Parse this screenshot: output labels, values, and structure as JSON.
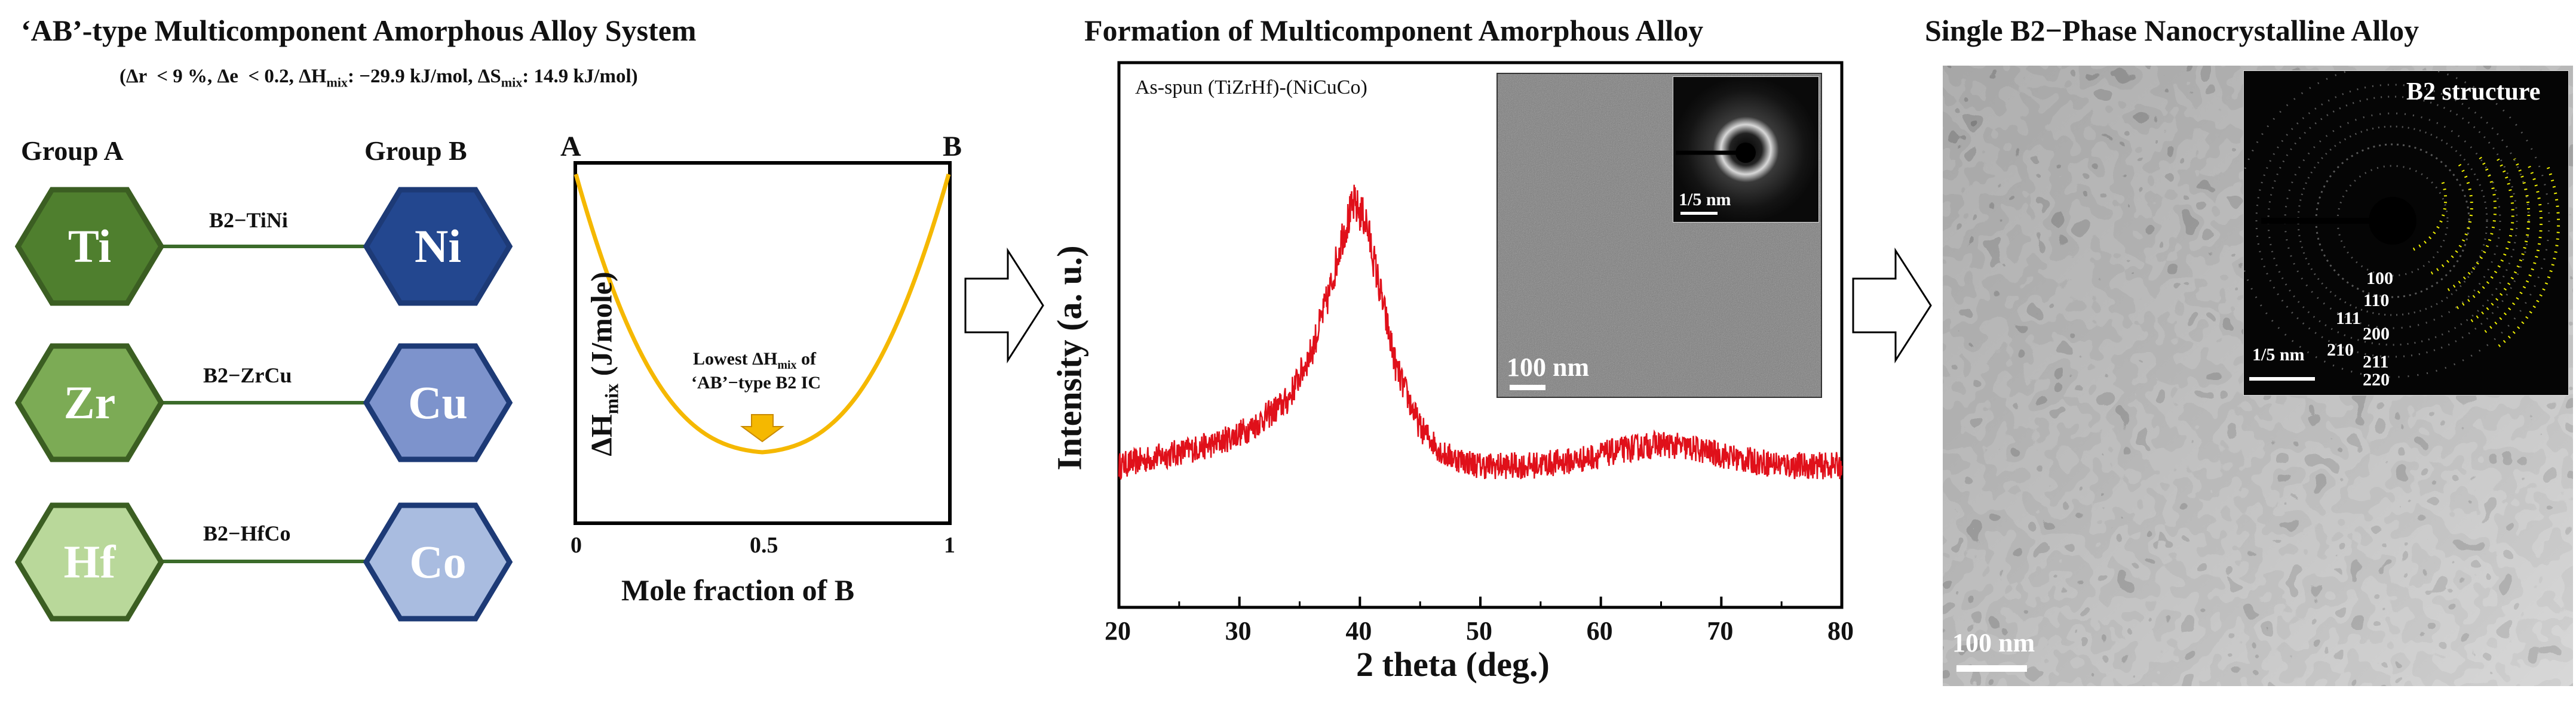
{
  "panel1": {
    "title": "‘AB’-type Multicomponent Amorphous Alloy System",
    "subtitle": "(Δr  < 9 %, Δe  < 0.2, ΔH_mix: −29.9 kJ/mol, ΔS_mix: 14.9 kJ/mol)",
    "group_a_label": "Group A",
    "group_b_label": "Group B",
    "pairs": [
      {
        "a": "Ti",
        "b": "Ni",
        "bond": "B2−TiNi"
      },
      {
        "a": "Zr",
        "b": "Cu",
        "bond": "B2−ZrCu"
      },
      {
        "a": "Hf",
        "b": "Co",
        "bond": "B2−HfCo"
      }
    ],
    "colors": {
      "group_a": [
        "#4f7f2e",
        "#7cab55",
        "#b9d89a"
      ],
      "group_a_border": "#3b5e22",
      "group_b": [
        "#23478f",
        "#7d93cc",
        "#a9bce0"
      ],
      "group_b_border": "#1d3a76"
    }
  },
  "panel2": {
    "corner_a": "A",
    "corner_b": "B",
    "ylabel": "ΔH_mix (J/mole)",
    "xlabel": "Mole fraction of B",
    "x_ticks": [
      "0",
      "0.5",
      "1"
    ],
    "annotation_line1": "Lowest ΔH_mix of",
    "annotation_line2": "‘AB’−type B2 IC",
    "curve_color": "#f5b800",
    "arrow_color": "#f5b800"
  },
  "panel3": {
    "title": "Formation of Multicomponent Amorphous Alloy",
    "legend": "As-spun (TiZrHf)-(NiCuCo)",
    "ylabel": "Intensity (a. u.)",
    "xlabel": "2 theta (deg.)",
    "inset_scale": "100 nm",
    "saed_scale": "1/5 nm",
    "chart_data": {
      "type": "line",
      "title": "",
      "xlabel": "2 theta (deg.)",
      "ylabel": "Intensity (a. u.)",
      "x_ticks": [
        "20",
        "30",
        "40",
        "50",
        "60",
        "70",
        "80"
      ],
      "xlim": [
        20,
        80
      ],
      "ylim": [
        0,
        1
      ],
      "series": [
        {
          "name": "As-spun (TiZrHf)-(NiCuCo)",
          "color": "#e0101a",
          "x": [
            20,
            24,
            28,
            31,
            34,
            36,
            37.5,
            38.5,
            39.5,
            40.5,
            41.5,
            43,
            45,
            47,
            50,
            54,
            58,
            62,
            65,
            68,
            72,
            76,
            80
          ],
          "y": [
            0.26,
            0.28,
            0.3,
            0.33,
            0.38,
            0.47,
            0.58,
            0.68,
            0.74,
            0.71,
            0.6,
            0.44,
            0.33,
            0.28,
            0.26,
            0.26,
            0.27,
            0.29,
            0.3,
            0.29,
            0.27,
            0.26,
            0.26
          ]
        }
      ]
    }
  },
  "panel4": {
    "title": "Single B2−Phase Nanocrystalline Alloy",
    "scale": "100 nm",
    "inset_title": "B2 structure",
    "inset_scale": "1/5 nm",
    "ring_color": "#f2f200",
    "ring_indices": [
      "100",
      "110",
      "111",
      "200",
      "210",
      "211",
      "220"
    ]
  }
}
